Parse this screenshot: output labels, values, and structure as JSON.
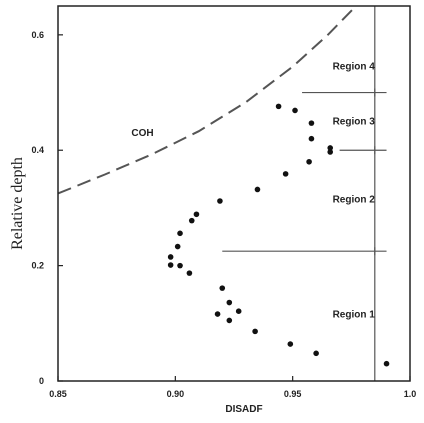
{
  "chart_data": {
    "type": "scatter",
    "xlabel": "DISADF",
    "ylabel": "Relative depth",
    "xlim": [
      0.85,
      1.0
    ],
    "ylim": [
      0.0,
      0.65
    ],
    "x_ticks": [
      {
        "value": 0.85,
        "label": "0.85"
      },
      {
        "value": 0.9,
        "label": "0.90"
      },
      {
        "value": 0.95,
        "label": "0.95"
      },
      {
        "value": 1.0,
        "label": "1.0"
      }
    ],
    "y_ticks": [
      {
        "value": 0.0,
        "label": "0"
      },
      {
        "value": 0.2,
        "label": "0.2"
      },
      {
        "value": 0.4,
        "label": "0.4"
      },
      {
        "value": 0.6,
        "label": "0.6"
      }
    ],
    "points": [
      {
        "x": 0.99,
        "y": 0.03
      },
      {
        "x": 0.96,
        "y": 0.048
      },
      {
        "x": 0.949,
        "y": 0.064
      },
      {
        "x": 0.934,
        "y": 0.086
      },
      {
        "x": 0.923,
        "y": 0.105
      },
      {
        "x": 0.918,
        "y": 0.116
      },
      {
        "x": 0.927,
        "y": 0.121
      },
      {
        "x": 0.923,
        "y": 0.136
      },
      {
        "x": 0.92,
        "y": 0.161
      },
      {
        "x": 0.906,
        "y": 0.187
      },
      {
        "x": 0.898,
        "y": 0.201
      },
      {
        "x": 0.902,
        "y": 0.2
      },
      {
        "x": 0.898,
        "y": 0.215
      },
      {
        "x": 0.901,
        "y": 0.233
      },
      {
        "x": 0.902,
        "y": 0.256
      },
      {
        "x": 0.907,
        "y": 0.278
      },
      {
        "x": 0.909,
        "y": 0.289
      },
      {
        "x": 0.919,
        "y": 0.312
      },
      {
        "x": 0.935,
        "y": 0.332
      },
      {
        "x": 0.947,
        "y": 0.359
      },
      {
        "x": 0.957,
        "y": 0.38
      },
      {
        "x": 0.966,
        "y": 0.397
      },
      {
        "x": 0.966,
        "y": 0.404
      },
      {
        "x": 0.958,
        "y": 0.42
      },
      {
        "x": 0.958,
        "y": 0.447
      },
      {
        "x": 0.951,
        "y": 0.469
      },
      {
        "x": 0.944,
        "y": 0.476
      }
    ],
    "curve": {
      "label": "COH",
      "style": "dashed",
      "points": [
        {
          "x": 0.85,
          "y": 0.325
        },
        {
          "x": 0.87,
          "y": 0.358
        },
        {
          "x": 0.89,
          "y": 0.393
        },
        {
          "x": 0.91,
          "y": 0.433
        },
        {
          "x": 0.93,
          "y": 0.483
        },
        {
          "x": 0.95,
          "y": 0.545
        },
        {
          "x": 0.965,
          "y": 0.6
        },
        {
          "x": 0.977,
          "y": 0.65
        }
      ]
    },
    "vertical_line_x": 0.985,
    "boundaries": [
      {
        "y": 0.225,
        "x_from": 0.92,
        "x_to": 0.99
      },
      {
        "y": 0.4,
        "x_from": 0.97,
        "x_to": 0.99
      },
      {
        "y": 0.5,
        "x_from": 0.954,
        "x_to": 0.99
      }
    ],
    "regions": [
      {
        "label": "Region 1",
        "x": 0.976,
        "y": 0.115
      },
      {
        "label": "Region 2",
        "x": 0.976,
        "y": 0.315
      },
      {
        "label": "Region 3",
        "x": 0.976,
        "y": 0.45
      },
      {
        "label": "Region 4",
        "x": 0.976,
        "y": 0.545
      }
    ],
    "colors": {
      "marker": "#111111",
      "axis": "#222222",
      "curve": "#555555",
      "boundary": "#555555"
    }
  }
}
